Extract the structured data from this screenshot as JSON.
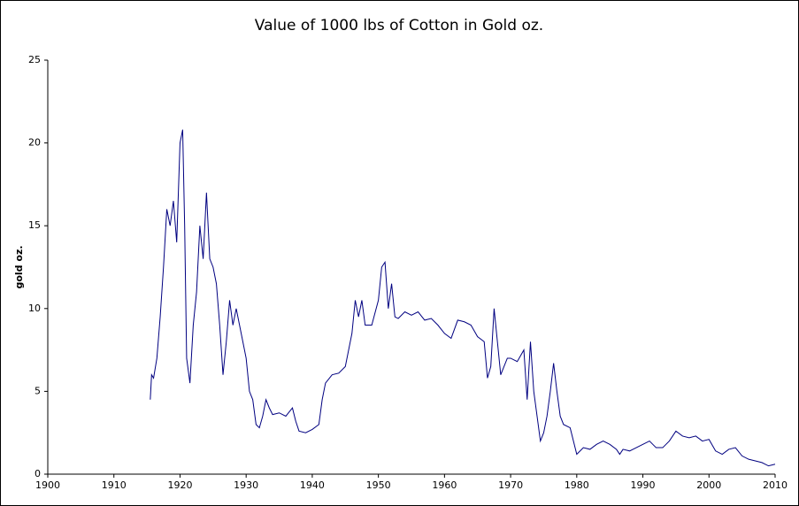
{
  "chart_data": {
    "type": "line",
    "title": "Value of 1000 lbs of Cotton in Gold oz.",
    "y_label": "gold oz.",
    "color": "#000080",
    "grid": false,
    "x": [
      1915.5,
      1915.7,
      1916,
      1916.5,
      1917,
      1917.5,
      1918,
      1918.5,
      1919,
      1919.5,
      1920,
      1920.4,
      1920.7,
      1921,
      1921.5,
      1922,
      1922.5,
      1923,
      1923.5,
      1924,
      1924.5,
      1925,
      1925.5,
      1926,
      1926.5,
      1927,
      1927.5,
      1928,
      1928.5,
      1929,
      1929.5,
      1930,
      1930.5,
      1931,
      1931.5,
      1932,
      1932.5,
      1933,
      1933.5,
      1934,
      1935,
      1936,
      1937,
      1937.5,
      1938,
      1939,
      1940,
      1941,
      1941.5,
      1942,
      1943,
      1944,
      1945,
      1946,
      1946.5,
      1947,
      1947.5,
      1948,
      1949,
      1950,
      1950.5,
      1951,
      1951.5,
      1952,
      1952.5,
      1953,
      1954,
      1955,
      1956,
      1957,
      1958,
      1959,
      1960,
      1961,
      1962,
      1963,
      1964,
      1965,
      1966,
      1966.5,
      1967,
      1967.5,
      1968,
      1968.5,
      1969,
      1969.5,
      1970,
      1971,
      1972,
      1972.5,
      1973,
      1973.5,
      1974,
      1974.5,
      1975,
      1975.5,
      1976,
      1976.5,
      1977,
      1977.5,
      1978,
      1979,
      1980,
      1981,
      1982,
      1983,
      1984,
      1985,
      1986,
      1986.5,
      1987,
      1988,
      1989,
      1990,
      1991,
      1992,
      1993,
      1994,
      1995,
      1996,
      1997,
      1998,
      1999,
      2000,
      2001,
      2002,
      2003,
      2004,
      2005,
      2006,
      2007,
      2008,
      2009,
      2010
    ],
    "values": [
      4.5,
      6,
      5.8,
      7,
      9.5,
      12.5,
      16,
      15,
      16.5,
      14,
      20,
      20.8,
      15,
      7,
      5.5,
      9,
      11,
      15,
      13,
      17,
      13,
      12.5,
      11.5,
      9,
      6,
      8,
      10.5,
      9,
      10,
      9,
      8,
      7,
      5,
      4.5,
      3,
      2.8,
      3.5,
      4.5,
      4,
      3.6,
      3.7,
      3.5,
      4,
      3.2,
      2.6,
      2.5,
      2.7,
      3,
      4.5,
      5.5,
      6,
      6.1,
      6.5,
      8.5,
      10.5,
      9.5,
      10.5,
      9,
      9,
      10.5,
      12.5,
      12.8,
      10,
      11.5,
      9.5,
      9.4,
      9.8,
      9.6,
      9.8,
      9.3,
      9.4,
      9,
      8.5,
      8.2,
      9.3,
      9.2,
      9,
      8.3,
      8,
      5.8,
      6.5,
      10,
      8,
      6,
      6.5,
      7,
      7,
      6.8,
      7.5,
      4.5,
      8,
      5,
      3.5,
      2,
      2.5,
      3.5,
      5,
      6.7,
      5,
      3.5,
      3,
      2.8,
      1.2,
      1.6,
      1.5,
      1.8,
      2,
      1.8,
      1.5,
      1.2,
      1.5,
      1.4,
      1.6,
      1.8,
      2,
      1.6,
      1.6,
      2,
      2.6,
      2.3,
      2.2,
      2.3,
      2,
      2.1,
      1.4,
      1.2,
      1.5,
      1.6,
      1.1,
      0.9,
      0.8,
      0.7,
      0.5,
      0.6
    ],
    "xlim": [
      1900,
      2010
    ],
    "xticks": [
      1900,
      1910,
      1920,
      1930,
      1940,
      1950,
      1960,
      1970,
      1980,
      1990,
      2000,
      2010
    ],
    "ylim": [
      0,
      25
    ],
    "yticks": [
      0,
      5,
      10,
      15,
      20,
      25
    ]
  }
}
